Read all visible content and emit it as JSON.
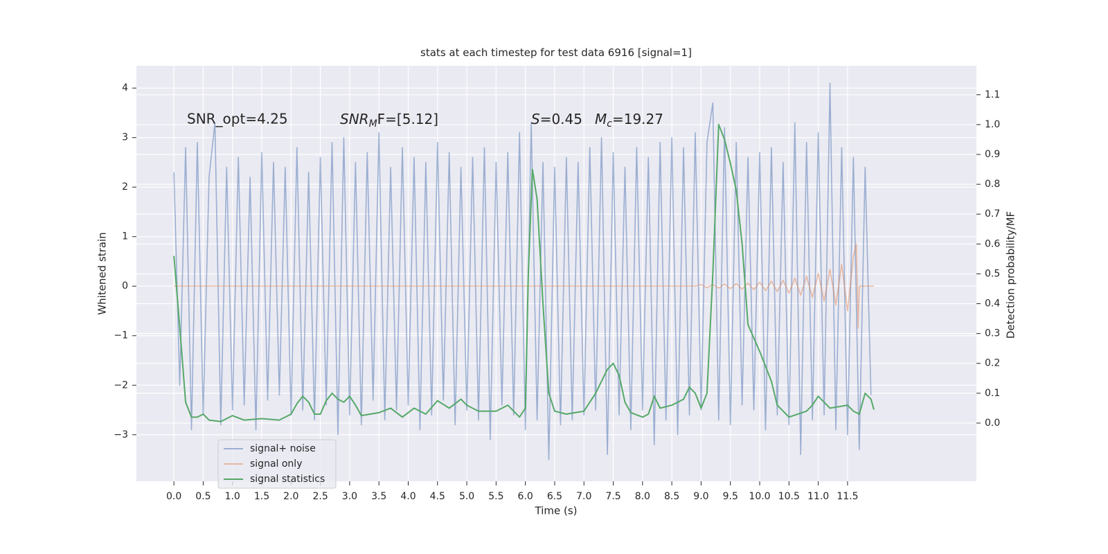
{
  "chart_data": {
    "type": "line",
    "title": "stats at each timestep for test data 6916 [signal=1]",
    "x_label": "Time (s)",
    "y_label": "Whitened strain",
    "y2_label": "Detection probability/MF",
    "annotations": [
      "SNR_opt=4.25",
      {
        "main": "SNR",
        "sub": "M",
        "rest": "F=[5.12]"
      },
      {
        "main": "S",
        "rest": "=0.45"
      },
      {
        "main": "M",
        "sub": "c",
        "rest": "=19.27"
      }
    ],
    "xlim": [
      -0.64,
      13.7
    ],
    "ylim": [
      -3.94,
      4.45
    ],
    "y2lim": [
      -0.195,
      1.197
    ],
    "xticks": [
      {
        "value": 0,
        "label": "0.0"
      },
      0.5,
      {
        "value": 1,
        "label": "1.0"
      },
      1.5,
      {
        "value": 2,
        "label": "2.0"
      },
      2.5,
      {
        "value": 3,
        "label": "3.0"
      },
      3.5,
      {
        "value": 4,
        "label": "4.0"
      },
      4.5,
      {
        "value": 5,
        "label": "5.0"
      },
      5.5,
      {
        "value": 6,
        "label": "6.0"
      },
      6.5,
      {
        "value": 7,
        "label": "7.0"
      },
      7.5,
      {
        "value": 8,
        "label": "8.0"
      },
      8.5,
      {
        "value": 9,
        "label": "9.0"
      },
      9.5,
      {
        "value": 10,
        "label": "10.0"
      },
      10.5,
      {
        "value": 11,
        "label": "11.0"
      },
      11.5
    ],
    "yticks": [
      {
        "value": -3,
        "label": "−3"
      },
      {
        "value": -2,
        "label": "−2"
      },
      {
        "value": -1,
        "label": "−1"
      },
      0,
      1,
      2,
      3,
      4
    ],
    "y2ticks": [
      {
        "value": 0,
        "label": "0.0"
      },
      0.1,
      0.2,
      0.3,
      0.4,
      0.5,
      0.6,
      0.7,
      0.8,
      0.9,
      {
        "value": 1,
        "label": "1.0"
      },
      1.1
    ],
    "grid": true,
    "legend_loc": "lower left",
    "series": [
      {
        "name": "signal+ noise",
        "color": "#4c72b0",
        "alpha": 0.5,
        "x": [
          0.0,
          0.1,
          0.2,
          0.3,
          0.4,
          0.5,
          0.6,
          0.7,
          0.8,
          0.9,
          1.0,
          1.1,
          1.2,
          1.3,
          1.4,
          1.5,
          1.6,
          1.7,
          1.8,
          1.9,
          2.0,
          2.1,
          2.2,
          2.3,
          2.4,
          2.5,
          2.6,
          2.7,
          2.8,
          2.9,
          3.0,
          3.1,
          3.2,
          3.3,
          3.4,
          3.5,
          3.6,
          3.7,
          3.8,
          3.9,
          4.0,
          4.1,
          4.2,
          4.3,
          4.4,
          4.5,
          4.6,
          4.7,
          4.8,
          4.9,
          5.0,
          5.1,
          5.2,
          5.3,
          5.4,
          5.5,
          5.6,
          5.7,
          5.8,
          5.9,
          6.0,
          6.1,
          6.2,
          6.3,
          6.4,
          6.5,
          6.6,
          6.7,
          6.8,
          6.9,
          7.0,
          7.1,
          7.2,
          7.3,
          7.4,
          7.5,
          7.6,
          7.7,
          7.8,
          7.9,
          8.0,
          8.1,
          8.2,
          8.3,
          8.4,
          8.5,
          8.6,
          8.7,
          8.8,
          8.9,
          9.0,
          9.1,
          9.2,
          9.3,
          9.4,
          9.5,
          9.6,
          9.7,
          9.8,
          9.9,
          10.0,
          10.1,
          10.2,
          10.3,
          10.4,
          10.5,
          10.6,
          10.7,
          10.8,
          10.9,
          11.0,
          11.1,
          11.2,
          11.3,
          11.4,
          11.5,
          11.6,
          11.7,
          11.8,
          11.9
        ],
        "values": [
          2.3,
          -2.0,
          2.8,
          -2.9,
          2.9,
          -2.6,
          2.2,
          3.3,
          -2.8,
          2.4,
          -2.5,
          2.6,
          -2.4,
          2.2,
          -2.9,
          2.7,
          -2.3,
          2.5,
          -2.2,
          2.4,
          -2.6,
          2.8,
          -2.5,
          2.3,
          -2.7,
          2.6,
          -2.4,
          2.9,
          -3.0,
          3.0,
          -2.6,
          2.5,
          -2.8,
          2.7,
          -2.3,
          3.1,
          -2.7,
          2.4,
          -2.5,
          2.8,
          -2.4,
          2.6,
          -2.9,
          2.5,
          -2.6,
          2.9,
          -2.3,
          2.7,
          -2.8,
          2.4,
          -2.5,
          2.6,
          -2.7,
          2.8,
          -3.1,
          2.5,
          -2.4,
          2.7,
          -2.6,
          3.1,
          -2.9,
          3.3,
          -2.7,
          2.5,
          -3.5,
          2.4,
          -2.8,
          2.6,
          -2.7,
          2.5,
          -2.6,
          2.8,
          -2.5,
          3.0,
          -3.4,
          2.7,
          -2.6,
          2.4,
          -2.9,
          2.8,
          -2.5,
          2.6,
          -3.2,
          2.9,
          -2.7,
          3.0,
          -3.0,
          2.8,
          -2.6,
          3.1,
          -2.5,
          2.9,
          3.7,
          -2.7,
          3.2,
          -2.8,
          2.9,
          -2.4,
          2.6,
          -2.5,
          2.7,
          -2.9,
          2.8,
          -2.6,
          2.5,
          -2.8,
          3.3,
          -3.4,
          2.9,
          -2.7,
          3.1,
          -2.6,
          4.1,
          -2.9,
          2.8,
          -3.0,
          2.6,
          -3.3,
          2.4,
          -2.2
        ]
      },
      {
        "name": "signal only",
        "color": "#dd8452",
        "alpha": 0.5,
        "x": [
          0.0,
          8.9,
          9.0,
          9.1,
          9.2,
          9.3,
          9.4,
          9.5,
          9.6,
          9.7,
          9.8,
          9.9,
          10.0,
          10.1,
          10.2,
          10.3,
          10.4,
          10.5,
          10.6,
          10.7,
          10.8,
          10.9,
          11.0,
          11.1,
          11.2,
          11.3,
          11.4,
          11.5,
          11.6,
          11.65,
          11.68,
          11.7,
          11.95
        ],
        "values": [
          0,
          0,
          0.03,
          -0.03,
          0.03,
          -0.04,
          0.04,
          -0.05,
          0.05,
          -0.06,
          0.06,
          -0.07,
          0.08,
          -0.09,
          0.1,
          -0.11,
          0.12,
          -0.14,
          0.16,
          -0.18,
          0.2,
          -0.23,
          0.26,
          -0.3,
          0.34,
          -0.38,
          0.44,
          -0.5,
          0.6,
          0.85,
          -0.85,
          0,
          0
        ]
      },
      {
        "name": "signal statistics",
        "color": "#55a868",
        "alpha": 1,
        "axis": "y2",
        "x": [
          0,
          0.1,
          0.2,
          0.3,
          0.4,
          0.5,
          0.6,
          0.8,
          1.0,
          1.2,
          1.5,
          1.8,
          2.0,
          2.1,
          2.2,
          2.3,
          2.4,
          2.5,
          2.6,
          2.7,
          2.8,
          2.9,
          3.0,
          3.1,
          3.2,
          3.5,
          3.7,
          3.9,
          4.1,
          4.3,
          4.5,
          4.7,
          4.9,
          5.0,
          5.2,
          5.5,
          5.7,
          5.9,
          6.0,
          6.05,
          6.12,
          6.2,
          6.3,
          6.4,
          6.5,
          6.7,
          7.0,
          7.2,
          7.4,
          7.5,
          7.6,
          7.7,
          7.8,
          8.0,
          8.1,
          8.2,
          8.3,
          8.5,
          8.7,
          8.8,
          8.9,
          9.0,
          9.1,
          9.2,
          9.3,
          9.4,
          9.5,
          9.6,
          9.7,
          9.8,
          10.0,
          10.2,
          10.3,
          10.5,
          10.8,
          10.9,
          11.0,
          11.1,
          11.2,
          11.5,
          11.6,
          11.7,
          11.8,
          11.9,
          11.95
        ],
        "values": [
          0.56,
          0.32,
          0.07,
          0.02,
          0.02,
          0.03,
          0.01,
          0.005,
          0.025,
          0.01,
          0.015,
          0.01,
          0.03,
          0.065,
          0.09,
          0.07,
          0.03,
          0.03,
          0.075,
          0.1,
          0.08,
          0.07,
          0.09,
          0.06,
          0.025,
          0.035,
          0.05,
          0.02,
          0.05,
          0.03,
          0.075,
          0.05,
          0.08,
          0.06,
          0.04,
          0.04,
          0.06,
          0.02,
          0.05,
          0.5,
          0.85,
          0.75,
          0.4,
          0.1,
          0.04,
          0.03,
          0.04,
          0.1,
          0.18,
          0.2,
          0.16,
          0.07,
          0.035,
          0.02,
          0.03,
          0.09,
          0.05,
          0.06,
          0.08,
          0.12,
          0.1,
          0.05,
          0.1,
          0.5,
          1.0,
          0.95,
          0.87,
          0.78,
          0.6,
          0.33,
          0.24,
          0.14,
          0.06,
          0.02,
          0.04,
          0.06,
          0.09,
          0.07,
          0.05,
          0.06,
          0.04,
          0.03,
          0.1,
          0.08,
          0.045
        ]
      }
    ]
  }
}
